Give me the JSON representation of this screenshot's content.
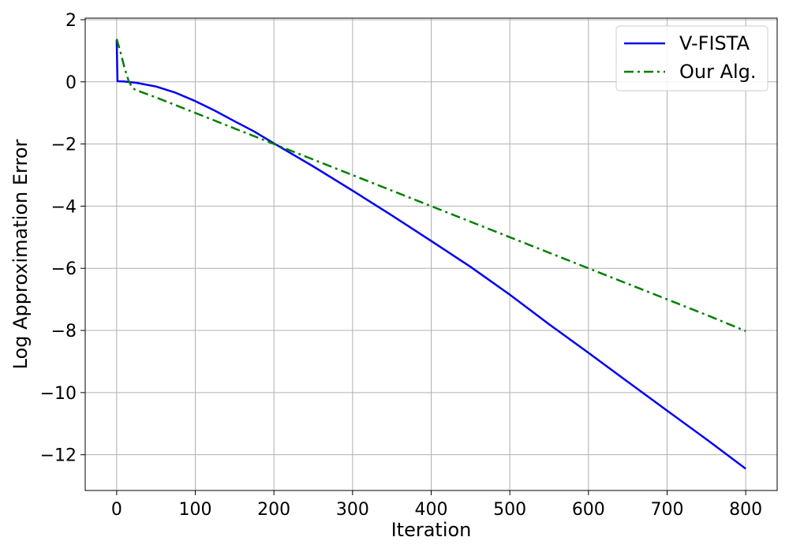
{
  "chart_data": {
    "type": "line",
    "title": "",
    "xlabel": "Iteration",
    "ylabel": "Log Approximation Error",
    "xlim": [
      -40,
      840
    ],
    "ylim": [
      -13.15,
      2.05
    ],
    "xticks": [
      0,
      100,
      200,
      300,
      400,
      500,
      600,
      700,
      800
    ],
    "yticks": [
      2,
      0,
      -2,
      -4,
      -6,
      -8,
      -10,
      -12
    ],
    "xtick_labels": [
      "0",
      "100",
      "200",
      "300",
      "400",
      "500",
      "600",
      "700",
      "800"
    ],
    "ytick_labels": [
      "2",
      "0",
      "−2",
      "−4",
      "−6",
      "−8",
      "−10",
      "−12"
    ],
    "grid": true,
    "legend_position": "top-right",
    "series": [
      {
        "name": "V-FISTA",
        "color": "#0000ee",
        "style": "solid",
        "x": [
          0,
          1,
          10,
          25,
          50,
          75,
          100,
          125,
          150,
          175,
          200,
          250,
          300,
          350,
          400,
          450,
          500,
          550,
          600,
          650,
          700,
          750,
          800
        ],
        "y": [
          1.35,
          0.02,
          0.01,
          -0.03,
          -0.15,
          -0.35,
          -0.62,
          -0.93,
          -1.27,
          -1.6,
          -1.98,
          -2.72,
          -3.5,
          -4.3,
          -5.12,
          -5.95,
          -6.85,
          -7.8,
          -8.72,
          -9.65,
          -10.58,
          -11.5,
          -12.45
        ]
      },
      {
        "name": "Our Alg.",
        "color": "#008000",
        "style": "dashdot",
        "x": [
          0,
          5,
          10,
          15,
          20,
          25,
          50,
          100,
          150,
          200,
          250,
          300,
          350,
          400,
          450,
          500,
          550,
          600,
          650,
          700,
          750,
          800
        ],
        "y": [
          1.38,
          0.95,
          0.45,
          0.05,
          -0.2,
          -0.27,
          -0.5,
          -1.0,
          -1.5,
          -2.0,
          -2.5,
          -3.0,
          -3.5,
          -4.0,
          -4.5,
          -5.0,
          -5.5,
          -6.0,
          -6.5,
          -7.0,
          -7.5,
          -8.02
        ]
      }
    ]
  }
}
